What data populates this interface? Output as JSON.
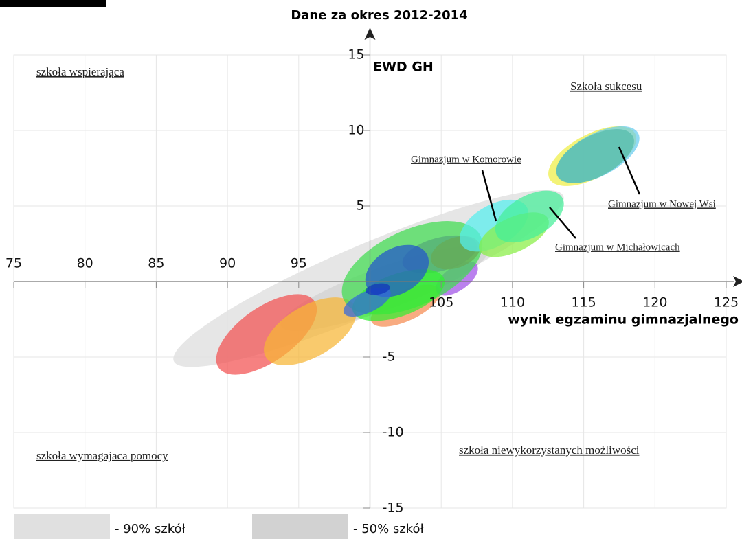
{
  "chart_data": {
    "type": "ellipse",
    "title": "Dane za okres 2012-2014",
    "x_label": "wynik egzaminu gimnazjalnego",
    "y_label": "EWD GH",
    "xlim": [
      75,
      125
    ],
    "ylim": [
      -15,
      15
    ],
    "axis_origin": [
      100,
      0
    ],
    "xticks": [
      75,
      80,
      85,
      90,
      95,
      105,
      110,
      115,
      120,
      125
    ],
    "yticks": [
      15,
      10,
      5,
      -5,
      -10,
      -15
    ],
    "grid": true,
    "ellipses": [
      {
        "x": 99.9,
        "y": 0.2,
        "rx": 14.85,
        "ry": 2.27,
        "angle": -23,
        "color": "#e2e2e2"
      },
      {
        "x": 101,
        "y": -0.45,
        "rx": 7.7,
        "ry": 1.4,
        "angle": -20,
        "color": "#d4d4d4"
      },
      {
        "x": 92.74,
        "y": -3.5,
        "rx": 4.1,
        "ry": 1.8,
        "angle": -35,
        "color": "#f25050"
      },
      {
        "x": 95.8,
        "y": -3.3,
        "rx": 3.6,
        "ry": 1.7,
        "angle": -30,
        "color": "#f7b535"
      },
      {
        "x": 102.5,
        "y": -1.6,
        "rx": 2.65,
        "ry": 1.0,
        "angle": -25,
        "color": "#f58a50"
      },
      {
        "x": 106.1,
        "y": 0.2,
        "rx": 1.7,
        "ry": 0.8,
        "angle": -35,
        "color": "#a050e8"
      },
      {
        "x": 102.96,
        "y": 0.9,
        "rx": 5.3,
        "ry": 2.5,
        "angle": -25,
        "color": "#40dd50"
      },
      {
        "x": 104.9,
        "y": 1.8,
        "rx": 2.7,
        "ry": 1.1,
        "angle": -15,
        "color": "#55aa77"
      },
      {
        "x": 102,
        "y": -0.9,
        "rx": 3.4,
        "ry": 1.4,
        "angle": -20,
        "color": "#30ee30"
      },
      {
        "x": 101.9,
        "y": 0.7,
        "rx": 2.4,
        "ry": 1.5,
        "angle": -30,
        "color": "#2255cc"
      },
      {
        "x": 99.8,
        "y": -1.36,
        "rx": 1.8,
        "ry": 0.7,
        "angle": -25,
        "color": "#3366dd"
      },
      {
        "x": 100.55,
        "y": -0.5,
        "rx": 0.87,
        "ry": 0.36,
        "angle": -10,
        "color": "#1133bb"
      },
      {
        "x": 106,
        "y": 1.9,
        "rx": 1.8,
        "ry": 1.0,
        "angle": -20,
        "color": "#66aa55"
      },
      {
        "x": 108.7,
        "y": 3.7,
        "rx": 2.65,
        "ry": 1.36,
        "angle": -30,
        "color": "#55eeee"
      },
      {
        "x": 110.1,
        "y": 3.1,
        "rx": 2.65,
        "ry": 1.14,
        "angle": -25,
        "color": "#88ee44"
      },
      {
        "x": 111.2,
        "y": 4.3,
        "rx": 2.65,
        "ry": 1.36,
        "angle": -30,
        "color": "#44ee99"
      },
      {
        "x": 115.6,
        "y": 8.3,
        "rx": 3.4,
        "ry": 1.45,
        "angle": -28,
        "color": "#eeee44"
      },
      {
        "x": 116.0,
        "y": 8.4,
        "rx": 3.2,
        "ry": 1.4,
        "angle": -28,
        "color": "#66ccee"
      },
      {
        "x": 115.8,
        "y": 8.3,
        "rx": 3.0,
        "ry": 1.36,
        "angle": -28,
        "color": "#55bbaa"
      }
    ],
    "quadrants": [
      "szkoła wspierająca",
      "Szkoła sukcesu",
      "szkoła wymagajaca pomocy",
      "szkoła niewykorzystanych możliwości"
    ],
    "annotations": [
      "Gimnazjum w Komorowie",
      "Gimnazjum w Nowej Wsi",
      "Gimnazjum w Michałowicach"
    ],
    "legend": [
      {
        "name": "- 90% szkół",
        "color": "#e0e0e0"
      },
      {
        "name": "- 50% szkół",
        "color": "#d2d2d2"
      }
    ]
  }
}
